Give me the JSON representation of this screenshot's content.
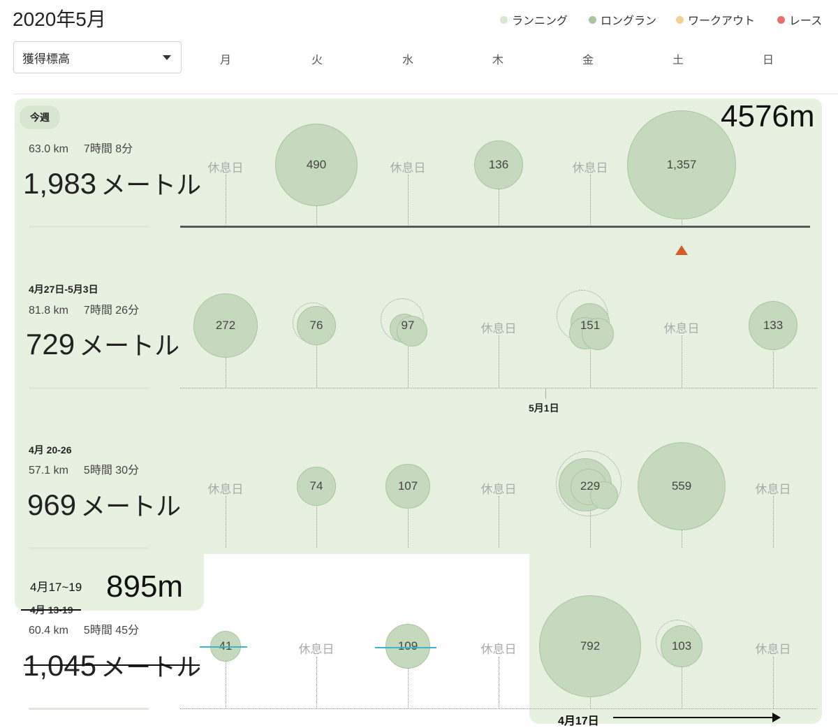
{
  "header": {
    "title": "2020年5月",
    "legend": [
      {
        "label": "ランニング",
        "color": "#d9e8d3"
      },
      {
        "label": "ロングラン",
        "color": "#a8c79c"
      },
      {
        "label": "ワークアウト",
        "color": "#f5d08f"
      },
      {
        "label": "レース",
        "color": "#e8706c"
      }
    ],
    "metric_select": "獲得標高",
    "days": [
      "月",
      "火",
      "水",
      "木",
      "金",
      "土",
      "日"
    ]
  },
  "weeks": [
    {
      "label": "今週",
      "distance": "63.0 km",
      "time": "7時間 8分",
      "total": "1,983",
      "unit": "メートル",
      "days": [
        "休息日",
        "490",
        "休息日",
        "136",
        "休息日",
        "1,357",
        ""
      ]
    },
    {
      "label": "4月27日-5月3日",
      "distance": "81.8 km",
      "time": "7時間 26分",
      "total": "729",
      "unit": "メートル",
      "days": [
        "272",
        "76",
        "97",
        "休息日",
        "151",
        "休息日",
        "133"
      ],
      "marker": "5月1日"
    },
    {
      "label": "4月 20-26",
      "distance": "57.1 km",
      "time": "5時間 30分",
      "total": "969",
      "unit": "メートル",
      "days": [
        "休息日",
        "74",
        "107",
        "休息日",
        "229",
        "559",
        "休息日"
      ]
    },
    {
      "label": "4月 13-19",
      "distance": "60.4 km",
      "time": "5時間 45分",
      "total": "1,045",
      "unit": "メートル",
      "days": [
        "41",
        "休息日",
        "109",
        "休息日",
        "792",
        "103",
        "休息日"
      ]
    }
  ],
  "annotations": {
    "top_total": "4576m",
    "partial_label": "4月17~19",
    "partial_total": "895m",
    "arrow_label": "4月17日"
  }
}
